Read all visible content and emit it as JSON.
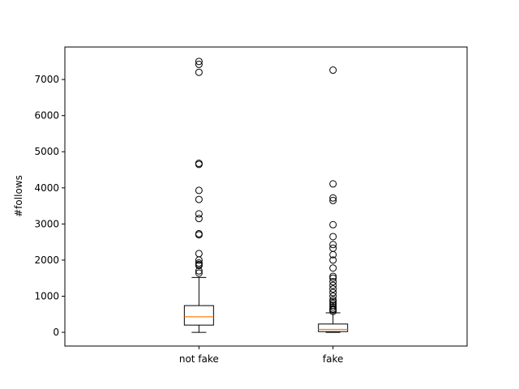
{
  "chart_data": {
    "type": "boxplot",
    "title": "",
    "xlabel": "",
    "ylabel": "#follows",
    "ylim": [
      -380,
      7900
    ],
    "yticks": [
      0,
      1000,
      2000,
      3000,
      4000,
      5000,
      6000,
      7000
    ],
    "ytick_labels": [
      "0",
      "1000",
      "2000",
      "3000",
      "4000",
      "5000",
      "6000",
      "7000"
    ],
    "categories": [
      "not fake",
      "fake"
    ],
    "grid": false,
    "colors": {
      "box": "#000000",
      "median": "#ff7f0e",
      "flier": "#000000"
    },
    "series": [
      {
        "category": "not fake",
        "whisker_low": 0,
        "q1": 200,
        "median": 430,
        "q3": 740,
        "whisker_high": 1520,
        "outliers": [
          1640,
          1700,
          1850,
          1880,
          1920,
          2000,
          2180,
          2700,
          2730,
          3150,
          3280,
          3680,
          3930,
          4650,
          4680,
          7200,
          7420,
          7500
        ]
      },
      {
        "category": "fake",
        "whisker_low": 0,
        "q1": 20,
        "median": 80,
        "q3": 230,
        "whisker_high": 540,
        "outliers": [
          580,
          620,
          650,
          700,
          750,
          800,
          850,
          900,
          1000,
          1100,
          1200,
          1300,
          1400,
          1500,
          1550,
          1780,
          2000,
          2150,
          2330,
          2430,
          2650,
          2980,
          3650,
          3720,
          4110,
          7260
        ]
      }
    ]
  }
}
